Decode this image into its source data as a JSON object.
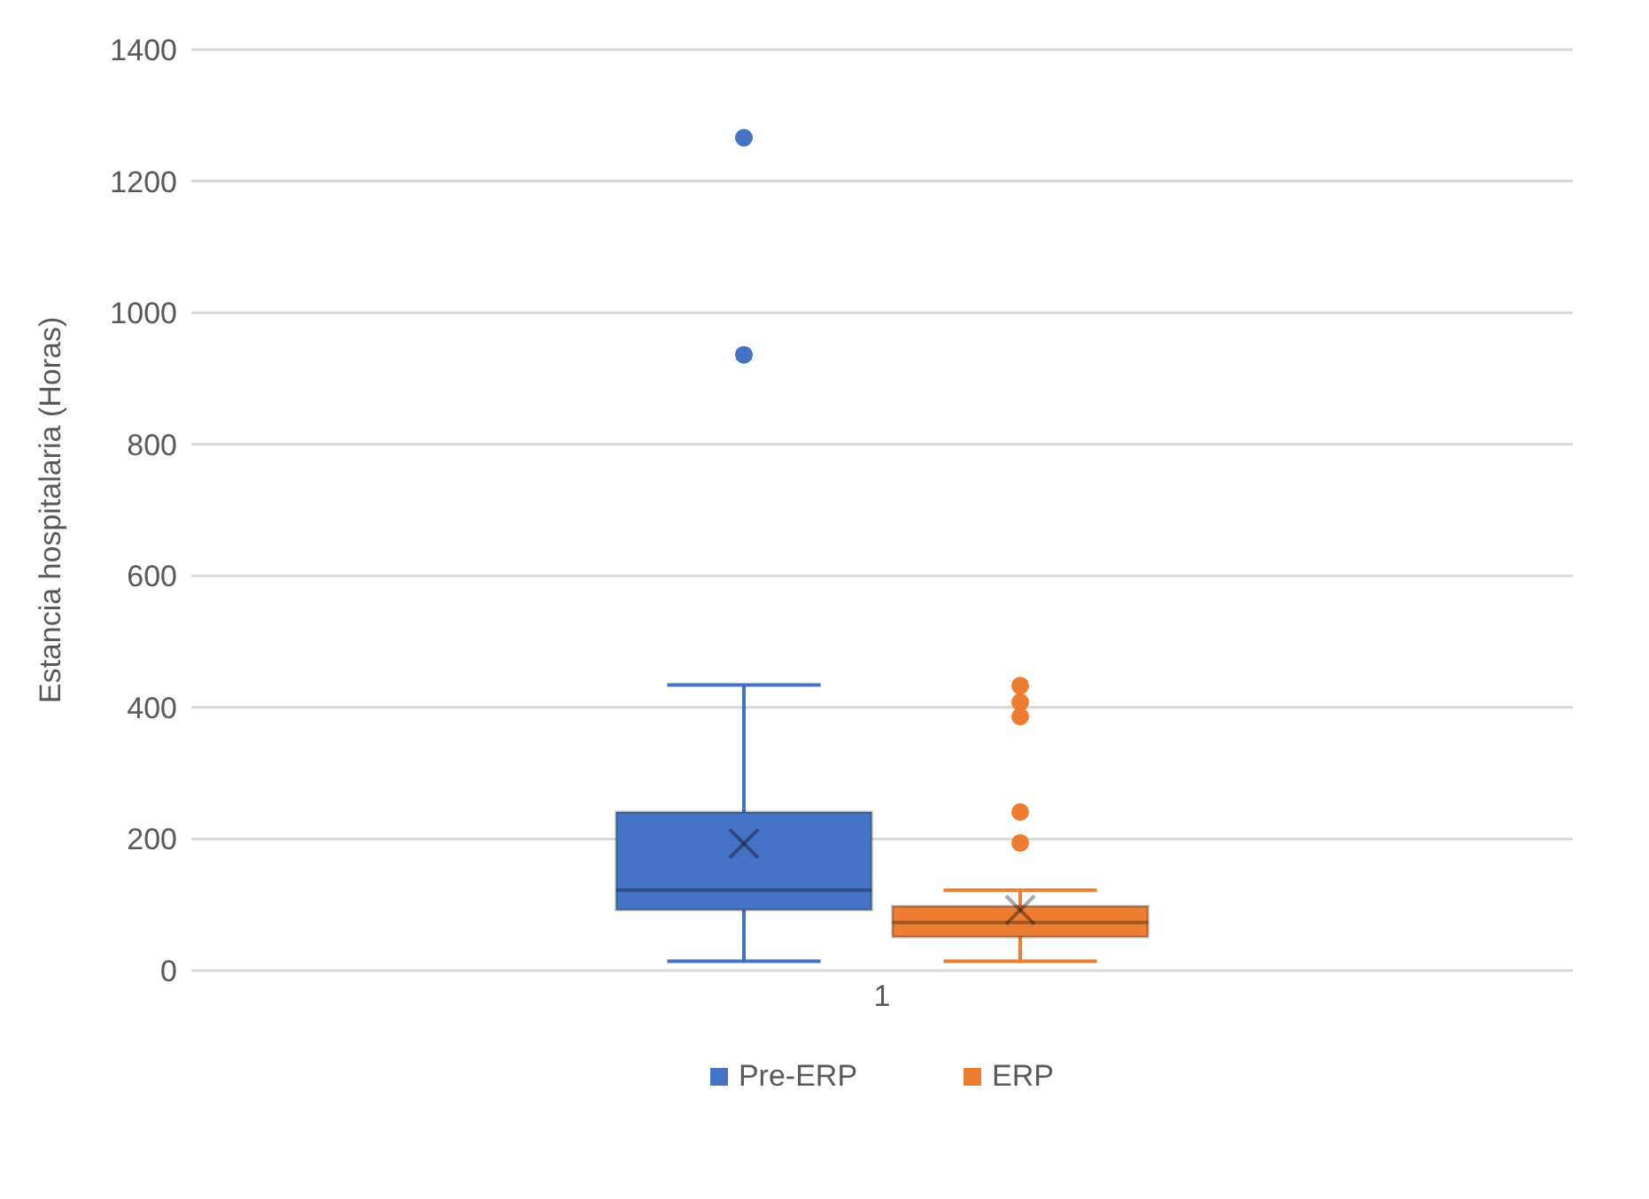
{
  "chart_data": {
    "type": "box",
    "ylabel": "Estancia hospitalaria (Horas)",
    "categories": [
      "1"
    ],
    "series": [
      {
        "name": "Pre-ERP",
        "color": "#4472c4",
        "boxes": [
          {
            "low": 14,
            "q1": 92,
            "median": 122,
            "q3": 241,
            "high": 434,
            "mean": 193,
            "outliers": [
              936,
              1266
            ]
          }
        ]
      },
      {
        "name": "ERP",
        "color": "#ed7d31",
        "boxes": [
          {
            "low": 14,
            "q1": 51,
            "median": 73,
            "q3": 98,
            "high": 122,
            "mean": 92,
            "outliers": [
              194,
              241,
              386,
              408,
              433
            ]
          }
        ]
      }
    ],
    "ylim": [
      0,
      1400
    ],
    "yticks": [
      0,
      200,
      400,
      600,
      800,
      1000,
      1200,
      1400
    ],
    "grid": "y",
    "legend": "bottom"
  }
}
